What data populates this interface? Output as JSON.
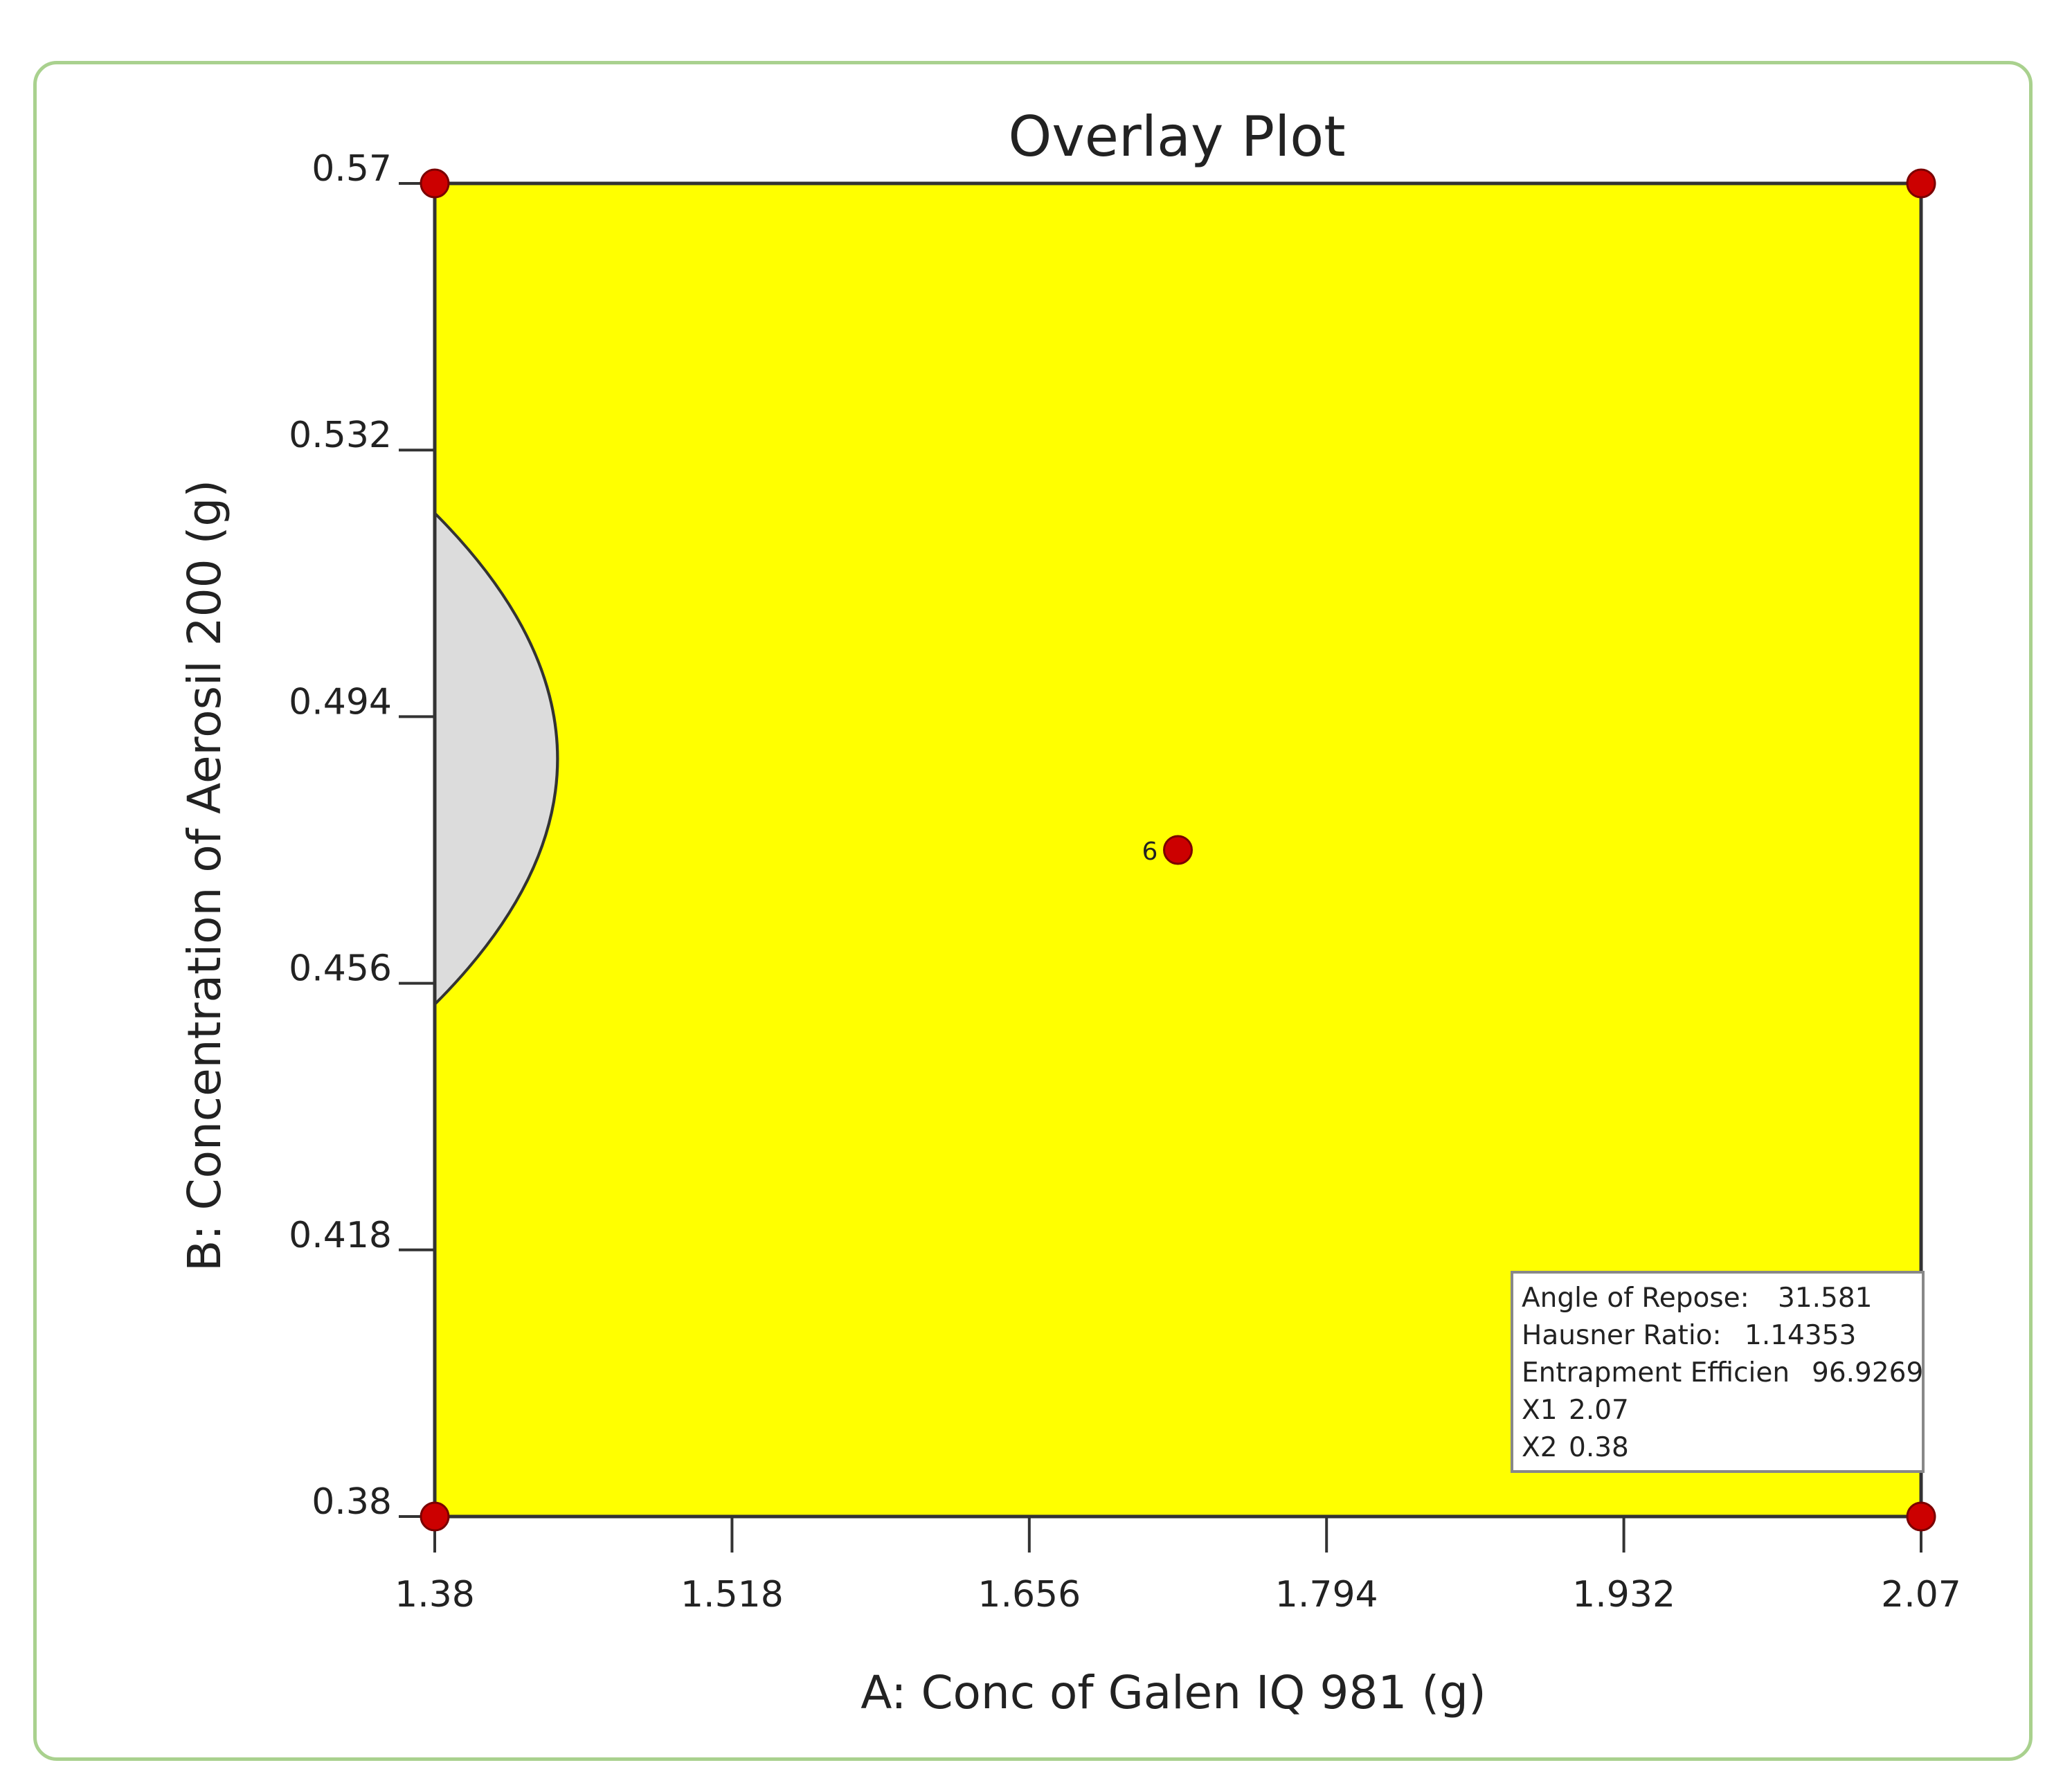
{
  "chart_data": {
    "type": "contour",
    "title": "Overlay Plot",
    "xlabel": "A: Conc of Galen IQ 981 (g)",
    "ylabel": "B: Concentration of Aerosil 200 (g)",
    "xlim": [
      1.38,
      2.07
    ],
    "ylim": [
      0.38,
      0.57
    ],
    "x_ticks": [
      "1.38",
      "1.518",
      "1.656",
      "1.794",
      "1.932",
      "2.07"
    ],
    "y_ticks": [
      "0.38",
      "0.418",
      "0.456",
      "0.494",
      "0.532",
      "0.57"
    ],
    "region_color": "#ffff00",
    "excluded_region_color": "#dcdcdc",
    "excluded_region": {
      "vertex_x": 1.437,
      "vertex_y": 0.488,
      "y_range": [
        0.453,
        0.523
      ]
    },
    "design_points": [
      {
        "x": 1.38,
        "y": 0.57,
        "label": ""
      },
      {
        "x": 2.07,
        "y": 0.57,
        "label": ""
      },
      {
        "x": 1.38,
        "y": 0.38,
        "label": ""
      },
      {
        "x": 2.07,
        "y": 0.38,
        "label": ""
      },
      {
        "x": 1.725,
        "y": 0.475,
        "label": "6"
      }
    ],
    "point_color": "#cc0000",
    "flag": {
      "x": 2.07,
      "y": 0.38,
      "lines": [
        {
          "label": "Angle of Repose:",
          "value": "31.581"
        },
        {
          "label": "Hausner Ratio:",
          "value": "1.14353"
        },
        {
          "label": "Entrapment Efficien",
          "value": "96.9269"
        },
        {
          "label": "X1",
          "value": "2.07"
        },
        {
          "label": "X2",
          "value": "0.38"
        }
      ]
    }
  }
}
